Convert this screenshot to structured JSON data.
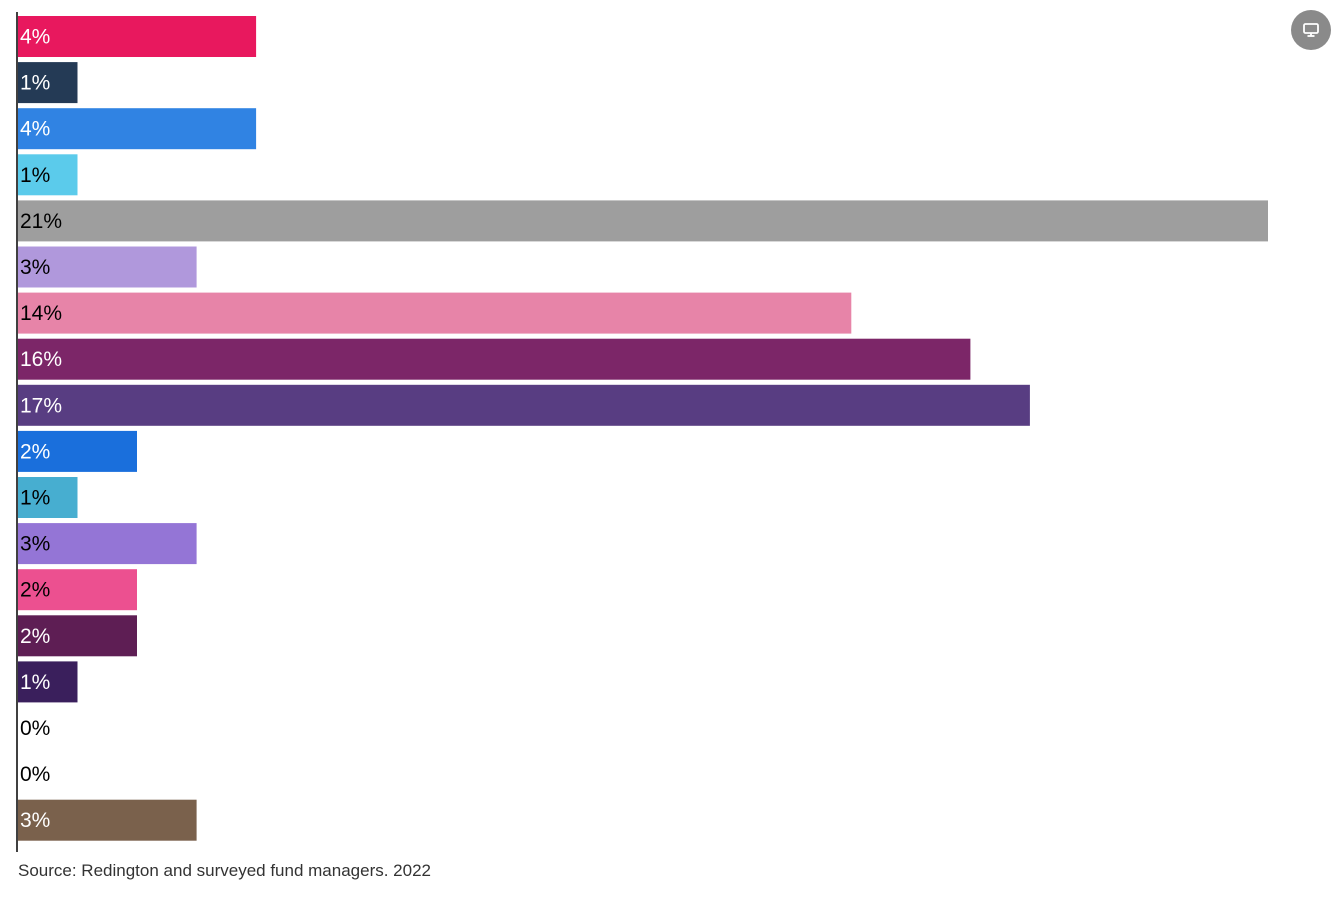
{
  "chart_data": {
    "type": "bar",
    "orientation": "horizontal",
    "xlim": [
      0,
      21
    ],
    "grid": false,
    "bars": [
      {
        "value": 4,
        "label": "4%",
        "color": "#e8185e",
        "text_color": "#ffffff"
      },
      {
        "value": 1,
        "label": "1%",
        "color": "#243a55",
        "text_color": "#ffffff"
      },
      {
        "value": 4,
        "label": "4%",
        "color": "#3083e3",
        "text_color": "#ffffff"
      },
      {
        "value": 1,
        "label": "1%",
        "color": "#5bcbeb",
        "text_color": "#000000"
      },
      {
        "value": 21,
        "label": "21%",
        "color": "#9e9e9e",
        "text_color": "#000000"
      },
      {
        "value": 3,
        "label": "3%",
        "color": "#b098dc",
        "text_color": "#000000"
      },
      {
        "value": 14,
        "label": "14%",
        "color": "#e784a8",
        "text_color": "#000000"
      },
      {
        "value": 16,
        "label": "16%",
        "color": "#7c2668",
        "text_color": "#ffffff"
      },
      {
        "value": 17,
        "label": "17%",
        "color": "#583d82",
        "text_color": "#ffffff"
      },
      {
        "value": 2,
        "label": "2%",
        "color": "#1a6fdc",
        "text_color": "#ffffff"
      },
      {
        "value": 1,
        "label": "1%",
        "color": "#47aed0",
        "text_color": "#000000"
      },
      {
        "value": 3,
        "label": "3%",
        "color": "#9475d6",
        "text_color": "#000000"
      },
      {
        "value": 2,
        "label": "2%",
        "color": "#ec5090",
        "text_color": "#000000"
      },
      {
        "value": 2,
        "label": "2%",
        "color": "#5e1e54",
        "text_color": "#ffffff"
      },
      {
        "value": 1,
        "label": "1%",
        "color": "#3a1f5c",
        "text_color": "#ffffff"
      },
      {
        "value": 0,
        "label": "0%",
        "color": "#cccccc",
        "text_color": "#000000"
      },
      {
        "value": 0,
        "label": "0%",
        "color": "#cccccc",
        "text_color": "#000000"
      },
      {
        "value": 3,
        "label": "3%",
        "color": "#7a614c",
        "text_color": "#ffffff"
      }
    ]
  },
  "source": "Source: Redington and surveyed fund managers. 2022",
  "controls": {
    "view_toggle_icon": "monitor-icon"
  }
}
